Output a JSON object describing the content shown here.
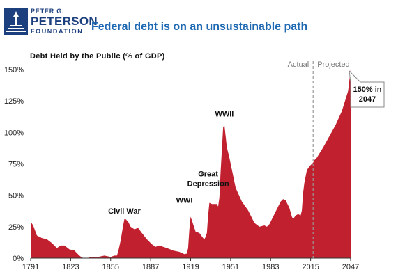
{
  "header": {
    "logo": {
      "line1": "PETER G.",
      "line2": "PETERSON",
      "line3": "FOUNDATION"
    },
    "title": "Federal debt is on an unsustainable path"
  },
  "colors": {
    "area": "#c1202f",
    "title": "#1f69b3",
    "brand": "#1c3f7e",
    "divider": "#999999"
  },
  "icons": {
    "logo_mark": "peterson-foundation-logo-icon"
  },
  "chart_data": {
    "type": "area",
    "title": "Debt Held by the Public (% of GDP)",
    "xlim": [
      1791,
      2047
    ],
    "ylim": [
      0,
      150
    ],
    "x_ticks": [
      1791,
      1823,
      1855,
      1887,
      1919,
      1951,
      1983,
      2015,
      2047
    ],
    "y_ticks": [
      0,
      25,
      50,
      75,
      100,
      125,
      150
    ],
    "y_tick_labels": [
      "0%",
      "25%",
      "50%",
      "75%",
      "100%",
      "125%",
      "150%"
    ],
    "grid": false,
    "divider_year": 2017,
    "phase_labels": {
      "actual": "Actual",
      "projected": "Projected"
    },
    "callout": {
      "year": 2047,
      "lines": [
        "150% in",
        "2047"
      ]
    },
    "annotations": [
      {
        "text": "Civil War",
        "year": 1866,
        "value": 31
      },
      {
        "text": "WWI",
        "year": 1919,
        "value": 33
      },
      {
        "text": "Great",
        "year": 1933,
        "value": 44
      },
      {
        "text": "Depression",
        "year": 1933,
        "value": 44
      },
      {
        "text": "WWII",
        "year": 1946,
        "value": 106
      }
    ],
    "series": [
      {
        "x": [
          1791,
          1793,
          1796,
          1800,
          1804,
          1808,
          1812,
          1815,
          1818,
          1822,
          1826,
          1830,
          1832,
          1834,
          1836,
          1840,
          1845,
          1850,
          1855,
          1858,
          1860,
          1861,
          1863,
          1865,
          1866,
          1867,
          1869,
          1871,
          1874,
          1877,
          1880,
          1884,
          1888,
          1891,
          1894,
          1897,
          1900,
          1905,
          1910,
          1914,
          1916,
          1917,
          1918,
          1919,
          1920,
          1921,
          1923,
          1926,
          1929,
          1930,
          1931,
          1932,
          1933,
          1934,
          1936,
          1938,
          1940,
          1941,
          1942,
          1943,
          1944,
          1945,
          1946,
          1947,
          1948,
          1950,
          1955,
          1960,
          1965,
          1970,
          1974,
          1978,
          1980,
          1982,
          1985,
          1988,
          1991,
          1993,
          1995,
          1998,
          2000,
          2001,
          2003,
          2005,
          2007,
          2008,
          2009,
          2010,
          2012,
          2014,
          2016,
          2017,
          2018,
          2020,
          2025,
          2030,
          2035,
          2040,
          2045,
          2047
        ],
        "y": [
          29,
          26,
          18,
          16,
          15,
          12,
          8,
          10,
          10,
          7,
          6,
          2,
          0.5,
          0,
          0,
          1,
          1,
          2,
          1,
          2,
          2,
          5,
          14,
          26,
          31,
          31,
          29,
          25,
          23,
          24,
          20,
          15,
          11,
          9,
          10,
          9,
          8,
          6,
          5,
          3.2,
          3.6,
          8,
          23,
          33,
          30,
          27,
          21,
          20,
          16,
          15,
          17,
          20,
          34,
          44,
          43,
          43,
          43,
          41,
          48,
          69,
          86,
          104,
          106,
          97,
          88,
          80,
          56,
          45,
          38,
          28,
          25,
          26,
          25,
          27,
          33,
          39,
          45,
          47,
          46,
          40,
          33,
          31,
          34,
          35,
          34,
          38,
          52,
          60,
          70,
          73,
          75,
          76,
          78,
          80,
          88,
          97,
          106,
          117,
          133,
          150
        ]
      }
    ]
  }
}
